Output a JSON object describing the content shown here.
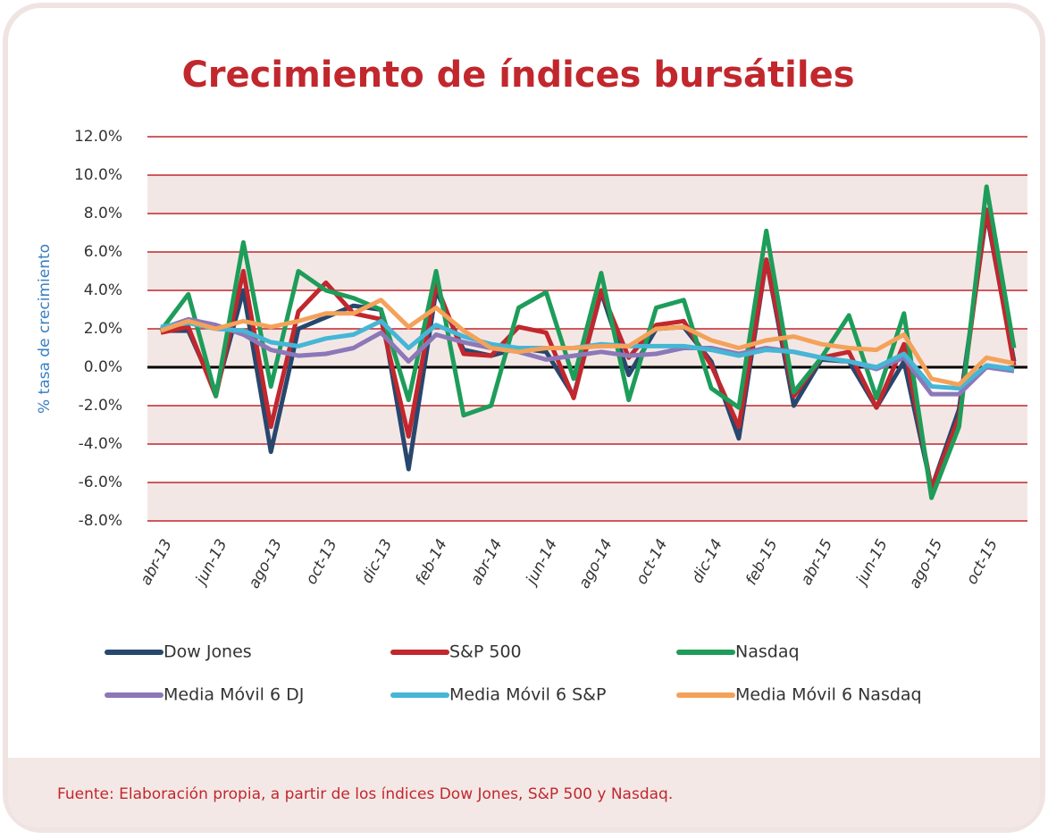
{
  "chart_data": {
    "type": "line",
    "title": "Crecimiento de índices bursátiles",
    "y_label": "% tasa de crecimiento",
    "source": "Fuente: Elaboración propia, a partir de los índices Dow Jones, S&P 500 y Nasdaq.",
    "categories": [
      "abr-13",
      null,
      "jun-13",
      null,
      "ago-13",
      null,
      "oct-13",
      null,
      "dic-13",
      null,
      "feb-14",
      null,
      "abr-14",
      null,
      "jun-14",
      null,
      "ago-14",
      null,
      "oct-14",
      null,
      "dic-14",
      null,
      "feb-15",
      null,
      "abr-15",
      null,
      "jun-15",
      null,
      "ago-15",
      null,
      "oct-15",
      null
    ],
    "ylim": [
      -8,
      12
    ],
    "yticks": [
      {
        "value": -8,
        "label": "-8.0%"
      },
      {
        "value": -6,
        "label": "-6.0%"
      },
      {
        "value": -4,
        "label": "-4.0%"
      },
      {
        "value": -2,
        "label": "-2.0%"
      },
      {
        "value": 0,
        "label": "0.0%"
      },
      {
        "value": 2,
        "label": "2.0%"
      },
      {
        "value": 4,
        "label": "4.0%"
      },
      {
        "value": 6,
        "label": "6.0%"
      },
      {
        "value": 8,
        "label": "8.0%"
      },
      {
        "value": 10,
        "label": "10.0%"
      },
      {
        "value": 12,
        "label": "12.0%"
      }
    ],
    "grid": true,
    "series": [
      {
        "name": "Dow Jones",
        "color": "#27476e",
        "values": [
          1.9,
          1.9,
          -1.3,
          4.0,
          -4.4,
          2.0,
          2.6,
          3.2,
          3.0,
          -5.3,
          4.0,
          0.9,
          0.6,
          1.0,
          0.8,
          -1.5,
          3.9,
          -0.4,
          2.0,
          2.1,
          0.3,
          -3.7,
          5.6,
          -2.0,
          0.4,
          0.3,
          -2.1,
          0.3,
          -6.3,
          -2.2,
          8.0,
          0.3
        ]
      },
      {
        "name": "S&P 500",
        "color": "#c1272d",
        "values": [
          1.8,
          2.1,
          -1.5,
          5.0,
          -3.1,
          2.9,
          4.4,
          2.8,
          2.5,
          -3.6,
          4.3,
          0.7,
          0.6,
          2.1,
          1.8,
          -1.6,
          4.0,
          0.5,
          2.2,
          2.4,
          0.1,
          -3.1,
          5.6,
          -1.5,
          0.5,
          0.8,
          -2.1,
          1.2,
          -6.3,
          -2.6,
          8.2,
          0.1
        ]
      },
      {
        "name": "Nasdaq",
        "color": "#1e9d5a",
        "values": [
          1.9,
          3.8,
          -1.5,
          6.5,
          -1.0,
          5.0,
          4.0,
          3.6,
          3.0,
          -1.7,
          5.0,
          -2.5,
          -2.0,
          3.1,
          3.9,
          -0.6,
          4.9,
          -1.7,
          3.1,
          3.5,
          -1.1,
          -2.1,
          7.1,
          -1.3,
          0.5,
          2.7,
          -1.6,
          2.8,
          -6.8,
          -3.1,
          9.4,
          1.0
        ]
      },
      {
        "name": "Media Móvil 6 DJ",
        "color": "#8c78b8",
        "values": [
          2.0,
          2.5,
          2.2,
          1.7,
          0.9,
          0.6,
          0.7,
          1.0,
          1.8,
          0.3,
          1.7,
          1.3,
          1.0,
          0.8,
          0.4,
          0.6,
          0.8,
          0.6,
          0.7,
          1.0,
          1.0,
          0.7,
          1.0,
          0.8,
          0.5,
          0.3,
          -0.1,
          0.5,
          -1.4,
          -1.4,
          0.0,
          -0.2
        ]
      },
      {
        "name": "Media Móvil 6 S&P",
        "color": "#45b6d6",
        "values": [
          2.1,
          2.3,
          2.0,
          1.9,
          1.3,
          1.1,
          1.5,
          1.7,
          2.4,
          1.0,
          2.2,
          1.6,
          1.2,
          1.0,
          1.0,
          1.0,
          1.2,
          1.1,
          1.1,
          1.1,
          0.9,
          0.6,
          0.9,
          0.8,
          0.5,
          0.3,
          0.0,
          0.7,
          -1.0,
          -1.1,
          0.1,
          -0.1
        ]
      },
      {
        "name": "Media Móvil 6 Nasdaq",
        "color": "#f4a25a",
        "values": [
          1.9,
          2.4,
          2.0,
          2.4,
          2.1,
          2.4,
          2.8,
          2.8,
          3.5,
          2.1,
          3.1,
          1.9,
          1.0,
          0.8,
          1.0,
          1.0,
          1.1,
          1.1,
          2.0,
          2.1,
          1.4,
          1.0,
          1.4,
          1.6,
          1.2,
          1.0,
          0.9,
          1.7,
          -0.6,
          -0.9,
          0.5,
          0.2
        ]
      }
    ]
  }
}
